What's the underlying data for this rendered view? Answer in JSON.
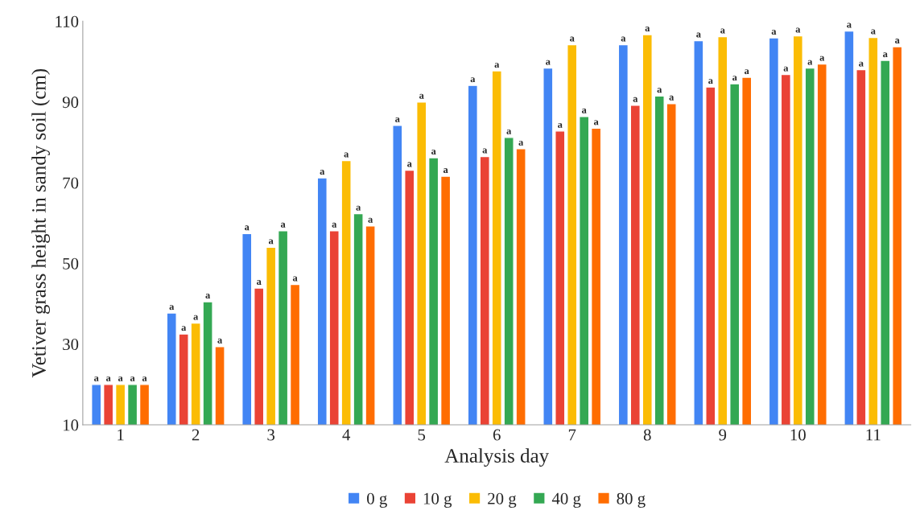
{
  "chart_data": {
    "type": "bar",
    "xlabel": "Analysis day",
    "ylabel": "Vetiver grass height in sandy soil (cm)",
    "categories": [
      "1",
      "2",
      "3",
      "4",
      "5",
      "6",
      "7",
      "8",
      "9",
      "10",
      "11"
    ],
    "series": [
      {
        "name": "0 g",
        "color": "#4285f4",
        "values": [
          20,
          37.7,
          57.4,
          71.2,
          84.2,
          94.1,
          98.4,
          104.2,
          105.2,
          105.9,
          107.6
        ],
        "value_labels": [
          "a",
          "a",
          "a",
          "a",
          "a",
          "a",
          "a",
          "a",
          "a",
          "a",
          "a"
        ]
      },
      {
        "name": "10 g",
        "color": "#ea4335",
        "values": [
          20,
          32.5,
          43.9,
          58.1,
          73.1,
          76.5,
          82.8,
          89.2,
          93.7,
          96.8,
          98.0
        ],
        "value_labels": [
          "a",
          "a",
          "a",
          "a",
          "a",
          "a",
          "a",
          "a",
          "a",
          "a",
          "a"
        ]
      },
      {
        "name": "20 g",
        "color": "#fbbc04",
        "values": [
          20,
          35.2,
          54.0,
          75.5,
          90.0,
          97.7,
          104.2,
          106.7,
          106.2,
          106.4,
          106.0
        ],
        "value_labels": [
          "a",
          "a",
          "a",
          "a",
          "a",
          "a",
          "a",
          "a",
          "a",
          "a",
          "a"
        ]
      },
      {
        "name": "40 g",
        "color": "#34a853",
        "values": [
          20,
          40.5,
          58.1,
          62.3,
          76.2,
          81.2,
          86.4,
          91.5,
          94.5,
          98.4,
          100.3
        ],
        "value_labels": [
          "a",
          "a",
          "a",
          "a",
          "a",
          "a",
          "a",
          "a",
          "a",
          "a",
          "a"
        ]
      },
      {
        "name": "80 g",
        "color": "#ff6d01",
        "values": [
          20,
          29.4,
          44.8,
          59.3,
          71.6,
          78.4,
          83.5,
          89.6,
          96.1,
          99.4,
          103.7
        ],
        "value_labels": [
          "a",
          "a",
          "a",
          "a",
          "a",
          "a",
          "a",
          "a",
          "a",
          "a",
          "a"
        ]
      }
    ],
    "ylim": [
      10,
      110
    ],
    "yticks": [
      10,
      30,
      50,
      70,
      90,
      110
    ],
    "grid": false,
    "legend": "bottom"
  }
}
